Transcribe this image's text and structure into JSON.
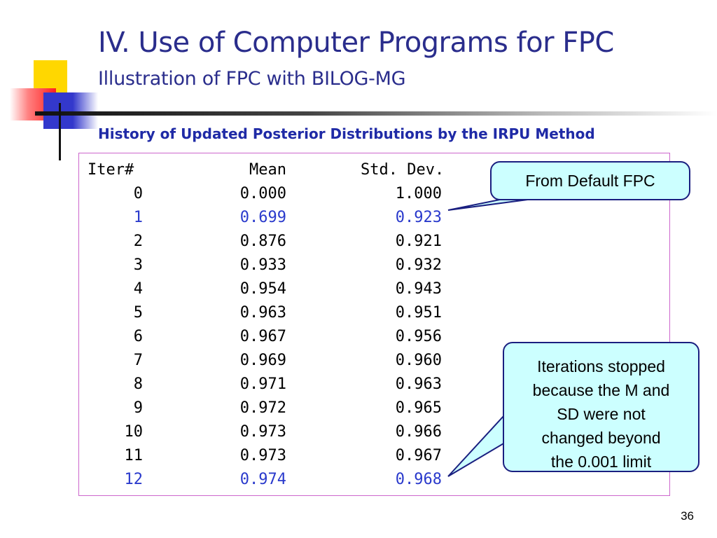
{
  "title": "IV. Use of Computer Programs for FPC",
  "subtitle": "Illustration of FPC with BILOG-MG",
  "heading": "History of Updated Posterior Distributions by the IRPU Method",
  "table": {
    "headers": [
      "Iter#",
      "Mean",
      "Std. Dev."
    ],
    "rows": [
      {
        "iter": "0",
        "mean": "0.000",
        "sd": "1.000",
        "highlight": false
      },
      {
        "iter": "1",
        "mean": "0.699",
        "sd": "0.923",
        "highlight": true
      },
      {
        "iter": "2",
        "mean": "0.876",
        "sd": "0.921",
        "highlight": false
      },
      {
        "iter": "3",
        "mean": "0.933",
        "sd": "0.932",
        "highlight": false
      },
      {
        "iter": "4",
        "mean": "0.954",
        "sd": "0.943",
        "highlight": false
      },
      {
        "iter": "5",
        "mean": "0.963",
        "sd": "0.951",
        "highlight": false
      },
      {
        "iter": "6",
        "mean": "0.967",
        "sd": "0.956",
        "highlight": false
      },
      {
        "iter": "7",
        "mean": "0.969",
        "sd": "0.960",
        "highlight": false
      },
      {
        "iter": "8",
        "mean": "0.971",
        "sd": "0.963",
        "highlight": false
      },
      {
        "iter": "9",
        "mean": "0.972",
        "sd": "0.965",
        "highlight": false
      },
      {
        "iter": "10",
        "mean": "0.973",
        "sd": "0.966",
        "highlight": false
      },
      {
        "iter": "11",
        "mean": "0.973",
        "sd": "0.967",
        "highlight": false
      },
      {
        "iter": "12",
        "mean": "0.974",
        "sd": "0.968",
        "highlight": true
      }
    ]
  },
  "callouts": {
    "default_fpc": "From Default FPC",
    "stopped": [
      "Iterations stopped",
      "because the M and",
      "SD were not",
      "changed beyond",
      "the 0.001 limit"
    ]
  },
  "page_number": "36",
  "colors": {
    "title": "#2a2d8c",
    "heading": "#1f2aa6",
    "highlight": "#2a3acc",
    "callout_fill": "#ccffff",
    "callout_border": "#1a1f80",
    "table_border": "#cc66cc"
  }
}
